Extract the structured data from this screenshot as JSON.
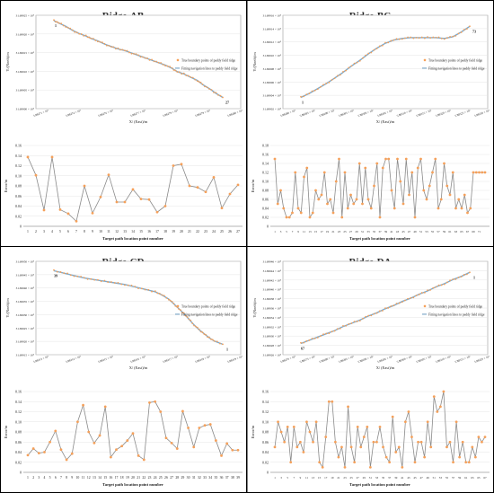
{
  "figure": {
    "panels": [
      {
        "title": "Ridge-AB",
        "top": {
          "ylabel": "Y/(North)/m",
          "xlabel": "X/ (East)/m",
          "xticks": [
            "5.88271 × 10⁵",
            "5.88274 × 10⁵",
            "5.88276 × 10⁵",
            "5.88277 × 10⁵",
            "5.88279 × 10⁵",
            "5.88279 × 10⁵",
            "5.88280 × 10⁵"
          ],
          "yticks": [
            "31.69925 × 10⁵",
            "31.69920 × 10⁵",
            "31.69915 × 10⁵",
            "31.69910 × 10⁵",
            "31.69905 × 10⁵",
            "31.69900 × 10⁵"
          ],
          "legend": [
            "True boundary points of paddy field ridge",
            "Fitting navigation lines to paddy field ridge"
          ],
          "start_label": "1",
          "end_label": "27"
        },
        "bottom": {
          "ylabel": "Error/m",
          "xlabel": "Target path location point number",
          "yticks": [
            "0.16",
            "0.14",
            "0.12",
            "0.10",
            "0.08",
            "0.06",
            "0.04",
            "0.02",
            "0"
          ],
          "xticks": [
            "1",
            "2",
            "3",
            "4",
            "5",
            "6",
            "7",
            "8",
            "9",
            "10",
            "11",
            "12",
            "13",
            "14",
            "15",
            "16",
            "17",
            "18",
            "19",
            "20",
            "21",
            "22",
            "23",
            "24",
            "25",
            "26",
            "27"
          ]
        }
      },
      {
        "title": "Ridge-BC",
        "top": {
          "ylabel": "Y/(North)/m",
          "xlabel": "X/ (East)/m",
          "xticks": [
            "5.88280 × 10⁵",
            "5.88285 × 10⁵",
            "5.88290 × 10⁵",
            "5.88295 × 10⁵",
            "5.88300 × 10⁵",
            "5.88305 × 10⁵",
            "5.88310 × 10⁵",
            "5.88315 × 10⁵",
            "5.88320 × 10⁵",
            "5.88325 × 10⁵",
            "5.88330 × 10⁵"
          ],
          "yticks": [
            "31.69916 × 10⁵",
            "31.69914 × 10⁵",
            "31.69912 × 10⁵",
            "31.69910 × 10⁵",
            "31.69908 × 10⁵",
            "31.69906 × 10⁵",
            "31.69904 × 10⁵",
            "31.69902 × 10⁵"
          ],
          "legend": [
            "True boundary points of paddy field ridge",
            "Fitting navigation lines to paddy field ridge"
          ],
          "start_label": "1",
          "end_label": "73"
        },
        "bottom": {
          "ylabel": "Error/m",
          "xlabel": "Target path location point number",
          "yticks": [
            "0.18",
            "0.16",
            "0.14",
            "0.12",
            "0.10",
            "0.08",
            "0.06",
            "0.04",
            "0.02",
            "0"
          ],
          "xticks": [
            "1",
            "3",
            "5",
            "7",
            "9",
            "11",
            "13",
            "15",
            "17",
            "19",
            "21",
            "23",
            "25",
            "27",
            "29",
            "31",
            "33",
            "35",
            "37",
            "39",
            "41",
            "43",
            "45",
            "47",
            "49",
            "51",
            "53",
            "55",
            "57",
            "59",
            "61",
            "63",
            "65",
            "67",
            "69",
            "71"
          ]
        }
      },
      {
        "title": "Ridge-CD",
        "top": {
          "ylabel": "Y/(North)/m",
          "xlabel": "X/ (East)/m",
          "xticks": [
            "5.88313 × 10⁵",
            "5.88314 × 10⁵",
            "5.88315 × 10⁵",
            "5.88316 × 10⁵",
            "5.88317 × 10⁵",
            "5.88318 × 10⁵",
            "5.88319 × 10⁵"
          ],
          "yticks": [
            "31.69950 × 10⁵",
            "31.69945 × 10⁵",
            "31.69940 × 10⁵",
            "31.69935 × 10⁵",
            "31.69930 × 10⁵",
            "31.69925 × 10⁵",
            "31.69920 × 10⁵",
            "31.69915 × 10⁵"
          ],
          "legend": [
            "True boundary points of paddy field ridge",
            "Fitting navigation lines to paddy field ridge"
          ],
          "start_label": "39",
          "end_label": "1"
        },
        "bottom": {
          "ylabel": "Error/m",
          "xlabel": "Target path location point number",
          "yticks": [
            "0.16",
            "0.14",
            "0.12",
            "0.10",
            "0.08",
            "0.06",
            "0.04",
            "0.02",
            "0"
          ],
          "xticks": [
            "1",
            "2",
            "3",
            "4",
            "5",
            "6",
            "7",
            "8",
            "9",
            "10",
            "11",
            "12",
            "13",
            "14",
            "15",
            "16",
            "17",
            "18",
            "19",
            "20",
            "21",
            "22",
            "23",
            "24",
            "25",
            "26",
            "27",
            "28",
            "29",
            "30",
            "31",
            "32",
            "33",
            "34",
            "35",
            "36",
            "37",
            "38",
            "39"
          ]
        }
      },
      {
        "title": "Ridge-DA",
        "top": {
          "ylabel": "Y/(North)/m",
          "xlabel": "X/ (East)/m",
          "xticks": [
            "5.88270 × 10⁵",
            "5.88275 × 10⁵",
            "5.88280 × 10⁵",
            "5.88285 × 10⁵",
            "5.88290 × 10⁵",
            "5.88295 × 10⁵",
            "5.88300 × 10⁵",
            "5.88305 × 10⁵",
            "5.88310 × 10⁵",
            "5.88315 × 10⁵",
            "5.88320 × 10⁵"
          ],
          "yticks": [
            "31.69946 × 10⁵",
            "31.69944 × 10⁵",
            "31.69942 × 10⁵",
            "31.69940 × 10⁵",
            "31.69938 × 10⁵",
            "31.69936 × 10⁵",
            "31.69934 × 10⁵",
            "31.69932 × 10⁵",
            "31.69930 × 10⁵",
            "31.69928 × 10⁵",
            "31.69926 × 10⁵"
          ],
          "legend": [
            "True boundary points of paddy field ridge",
            "Fitting navigation lines to paddy field ridge"
          ],
          "start_label": "67",
          "end_label": "1"
        },
        "bottom": {
          "ylabel": "Error/m",
          "xlabel": "Target path location point number",
          "yticks": [
            "0.16",
            "0.14",
            "0.12",
            "0.10",
            "0.08",
            "0.06",
            "0.04",
            "0.02",
            "0"
          ],
          "xticks": [
            "1",
            "3",
            "5",
            "7",
            "9",
            "11",
            "13",
            "15",
            "17",
            "19",
            "21",
            "23",
            "25",
            "27",
            "29",
            "31",
            "33",
            "35",
            "37",
            "39",
            "41",
            "43",
            "45",
            "47",
            "49",
            "51",
            "53",
            "55",
            "57",
            "59",
            "61",
            "63",
            "65",
            "67"
          ]
        }
      }
    ],
    "colors": {
      "points": "#f5a05a",
      "fit_line": "#7fa9c9",
      "error_line": "#8a8a8a",
      "grid": "#e0e0e0"
    }
  },
  "chart_data": [
    {
      "type": "scatter",
      "title": "Ridge-AB",
      "xlabel": "X/ (East)/m",
      "ylabel": "Y/(North)/m",
      "series": [
        {
          "name": "True boundary points of paddy field ridge",
          "x": [
            0.0,
            0.03,
            0.07,
            0.11,
            0.15,
            0.19,
            0.22,
            0.26,
            0.3,
            0.34,
            0.38,
            0.42,
            0.46,
            0.5,
            0.54,
            0.58,
            0.62,
            0.66,
            0.7,
            0.73,
            0.77,
            0.81,
            0.85,
            0.88,
            0.92,
            0.96,
            1.0
          ],
          "y": [
            1.0,
            0.97,
            0.93,
            0.88,
            0.84,
            0.81,
            0.78,
            0.75,
            0.71,
            0.68,
            0.65,
            0.63,
            0.6,
            0.57,
            0.54,
            0.51,
            0.48,
            0.45,
            0.41,
            0.37,
            0.34,
            0.3,
            0.26,
            0.21,
            0.16,
            0.1,
            0.05
          ]
        }
      ]
    },
    {
      "type": "line",
      "title": "Ridge-AB",
      "xlabel": "Target path location point number",
      "ylabel": "Error/m",
      "ylim": [
        0,
        0.16
      ],
      "x": [
        1,
        2,
        3,
        4,
        5,
        6,
        7,
        8,
        9,
        10,
        11,
        12,
        13,
        14,
        15,
        16,
        17,
        18,
        19,
        20,
        21,
        22,
        23,
        24,
        25,
        26,
        27
      ],
      "values": [
        0.137,
        0.101,
        0.032,
        0.137,
        0.033,
        0.025,
        0.01,
        0.08,
        0.026,
        0.058,
        0.102,
        0.048,
        0.048,
        0.073,
        0.054,
        0.053,
        0.028,
        0.04,
        0.12,
        0.123,
        0.08,
        0.077,
        0.068,
        0.097,
        0.036,
        0.064,
        0.082
      ]
    },
    {
      "type": "scatter",
      "title": "Ridge-BC",
      "xlabel": "X/ (East)/m",
      "ylabel": "Y/(North)/m",
      "series": [
        {
          "name": "True boundary points of paddy field ridge",
          "x": [
            0.0,
            0.05,
            0.1,
            0.15,
            0.2,
            0.25,
            0.3,
            0.35,
            0.4,
            0.45,
            0.5,
            0.55,
            0.6,
            0.65,
            0.7,
            0.75,
            0.8,
            0.85,
            0.9,
            0.95,
            1.0
          ],
          "y": [
            0.05,
            0.1,
            0.16,
            0.22,
            0.29,
            0.36,
            0.44,
            0.51,
            0.59,
            0.66,
            0.72,
            0.76,
            0.78,
            0.79,
            0.79,
            0.79,
            0.79,
            0.78,
            0.8,
            0.86,
            0.93
          ]
        }
      ]
    },
    {
      "type": "line",
      "title": "Ridge-BC",
      "xlabel": "Target path location point number",
      "ylabel": "Error/m",
      "ylim": [
        0,
        0.18
      ],
      "x": [
        1,
        2,
        3,
        4,
        5,
        6,
        7,
        8,
        9,
        10,
        11,
        12,
        13,
        14,
        15,
        16,
        17,
        18,
        19,
        20,
        21,
        22,
        23,
        24,
        25,
        26,
        27,
        28,
        29,
        30,
        31,
        32,
        33,
        34,
        35,
        36,
        37,
        38,
        39,
        40,
        41,
        42,
        43,
        44,
        45,
        46,
        47,
        48,
        49,
        50,
        51,
        52,
        53,
        54,
        55,
        56,
        57,
        58,
        59,
        60,
        61,
        62,
        63,
        64,
        65,
        66,
        67,
        68,
        69,
        70,
        71,
        72,
        73
      ],
      "values": [
        0.15,
        0.05,
        0.08,
        0.04,
        0.02,
        0.02,
        0.03,
        0.12,
        0.04,
        0.03,
        0.11,
        0.13,
        0.02,
        0.03,
        0.08,
        0.06,
        0.07,
        0.12,
        0.05,
        0.06,
        0.03,
        0.1,
        0.15,
        0.02,
        0.12,
        0.04,
        0.07,
        0.05,
        0.06,
        0.14,
        0.05,
        0.13,
        0.06,
        0.04,
        0.09,
        0.14,
        0.02,
        0.13,
        0.15,
        0.15,
        0.08,
        0.04,
        0.15,
        0.1,
        0.05,
        0.15,
        0.07,
        0.12,
        0.02,
        0.13,
        0.15,
        0.08,
        0.06,
        0.09,
        0.12,
        0.15,
        0.04,
        0.06,
        0.14,
        0.09,
        0.07,
        0.12,
        0.04,
        0.06,
        0.04,
        0.07,
        0.03,
        0.04,
        0.12,
        0.12,
        0.12,
        0.12,
        0.12
      ]
    },
    {
      "type": "scatter",
      "title": "Ridge-CD",
      "xlabel": "X/ (East)/m",
      "ylabel": "Y/(North)/m",
      "series": [
        {
          "name": "True boundary points of paddy field ridge",
          "x": [
            0.0,
            0.06,
            0.12,
            0.18,
            0.24,
            0.3,
            0.36,
            0.42,
            0.48,
            0.54,
            0.6,
            0.64,
            0.68,
            0.71,
            0.74,
            0.77,
            0.8,
            0.83,
            0.86,
            0.89,
            0.92,
            0.95,
            1.0
          ],
          "y": [
            0.95,
            0.92,
            0.89,
            0.86,
            0.84,
            0.82,
            0.8,
            0.78,
            0.75,
            0.72,
            0.69,
            0.65,
            0.6,
            0.54,
            0.48,
            0.42,
            0.35,
            0.28,
            0.22,
            0.17,
            0.12,
            0.08,
            0.04
          ]
        }
      ]
    },
    {
      "type": "line",
      "title": "Ridge-CD",
      "xlabel": "Target path location point number",
      "ylabel": "Error/m",
      "ylim": [
        0,
        0.16
      ],
      "x": [
        1,
        2,
        3,
        4,
        5,
        6,
        7,
        8,
        9,
        10,
        11,
        12,
        13,
        14,
        15,
        16,
        17,
        18,
        19,
        20,
        21,
        22,
        23,
        24,
        25,
        26,
        27,
        28,
        29,
        30,
        31,
        32,
        33,
        34,
        35,
        36,
        37,
        38,
        39
      ],
      "values": [
        0.034,
        0.047,
        0.038,
        0.04,
        0.06,
        0.082,
        0.045,
        0.025,
        0.037,
        0.1,
        0.133,
        0.08,
        0.058,
        0.073,
        0.13,
        0.03,
        0.045,
        0.052,
        0.063,
        0.077,
        0.033,
        0.025,
        0.138,
        0.14,
        0.12,
        0.068,
        0.058,
        0.047,
        0.121,
        0.088,
        0.05,
        0.088,
        0.093,
        0.095,
        0.063,
        0.033,
        0.057,
        0.044,
        0.044
      ]
    },
    {
      "type": "scatter",
      "title": "Ridge-DA",
      "xlabel": "X/ (East)/m",
      "ylabel": "Y/(North)/m",
      "series": [
        {
          "name": "True boundary points of paddy field ridge",
          "x": [
            0.0,
            0.05,
            0.1,
            0.15,
            0.2,
            0.25,
            0.3,
            0.35,
            0.4,
            0.45,
            0.5,
            0.55,
            0.6,
            0.65,
            0.7,
            0.75,
            0.8,
            0.85,
            0.9,
            0.95,
            1.0
          ],
          "y": [
            0.05,
            0.09,
            0.13,
            0.17,
            0.21,
            0.26,
            0.3,
            0.34,
            0.39,
            0.43,
            0.48,
            0.52,
            0.57,
            0.61,
            0.66,
            0.7,
            0.75,
            0.79,
            0.84,
            0.88,
            0.93
          ]
        }
      ]
    },
    {
      "type": "line",
      "title": "Ridge-DA",
      "xlabel": "Target path location point number",
      "ylabel": "Error/m",
      "ylim": [
        0,
        0.16
      ],
      "x": [
        1,
        2,
        3,
        4,
        5,
        6,
        7,
        8,
        9,
        10,
        11,
        12,
        13,
        14,
        15,
        16,
        17,
        18,
        19,
        20,
        21,
        22,
        23,
        24,
        25,
        26,
        27,
        28,
        29,
        30,
        31,
        32,
        33,
        34,
        35,
        36,
        37,
        38,
        39,
        40,
        41,
        42,
        43,
        44,
        45,
        46,
        47,
        48,
        49,
        50,
        51,
        52,
        53,
        54,
        55,
        56,
        57,
        58,
        59,
        60,
        61,
        62,
        63,
        64,
        65,
        66,
        67
      ],
      "values": [
        0.05,
        0.1,
        0.08,
        0.06,
        0.09,
        0.02,
        0.09,
        0.05,
        0.06,
        0.04,
        0.1,
        0.08,
        0.06,
        0.1,
        0.02,
        0.01,
        0.07,
        0.14,
        0.14,
        0.06,
        0.03,
        0.05,
        0.01,
        0.13,
        0.05,
        0.02,
        0.09,
        0.05,
        0.07,
        0.09,
        0.01,
        0.06,
        0.06,
        0.09,
        0.05,
        0.03,
        0.02,
        0.11,
        0.04,
        0.05,
        0.01,
        0.1,
        0.12,
        0.07,
        0.02,
        0.06,
        0.06,
        0.03,
        0.1,
        0.05,
        0.15,
        0.12,
        0.13,
        0.16,
        0.05,
        0.06,
        0.02,
        0.1,
        0.03,
        0.06,
        0.02,
        0.02,
        0.05,
        0.03,
        0.07,
        0.06,
        0.07
      ]
    }
  ]
}
